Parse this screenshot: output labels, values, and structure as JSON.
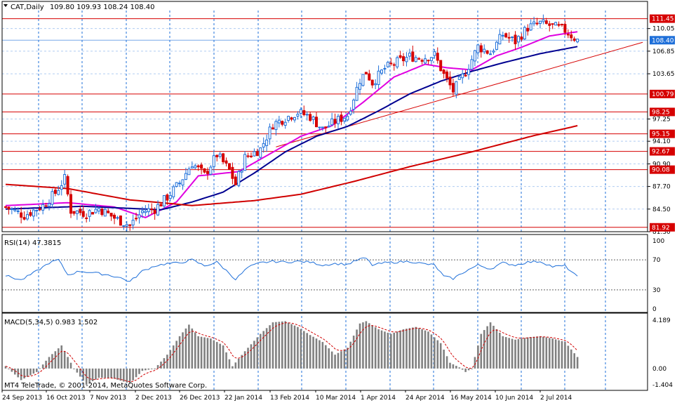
{
  "header": {
    "symbol_label": "CAT,Daily",
    "ohlc": "109.80 109.93 108.24 108.40"
  },
  "rsi_label": "RSI(14) 47.3815",
  "macd_label": "MACD(5,34,5) 0.983 1.502",
  "copyright": "MT4 TeleTrade, © 2001-2014, MetaQuotes Software Corp.",
  "colors": {
    "frame": "#000000",
    "grid": "#1e6fd9",
    "bull": "#1e6fd9",
    "bear": "#d60000",
    "level_line": "#d60000",
    "sma_fast": "#e000e0",
    "sma_mid": "#000090",
    "sma_slow": "#d00000",
    "rsi": "#1e6fd9",
    "macd_hist": "#808080",
    "macd_signal": "#d00000"
  },
  "chart_data": [
    {
      "type": "candlestick",
      "title": "CAT,Daily",
      "ylim": [
        81.3,
        112.6
      ],
      "y_ticks": [
        "110.05",
        "106.85",
        "103.65",
        "97.25",
        "94.10",
        "90.90",
        "87.70",
        "84.50",
        "81.30"
      ],
      "last_price": "108.40",
      "horizontal_levels": [
        "111.45",
        "100.79",
        "98.25",
        "95.15",
        "92.67",
        "90.08",
        "81.92"
      ],
      "x_ticks": [
        "24 Sep 2013",
        "16 Oct 2013",
        "7 Nov 2013",
        "2 Dec 2013",
        "26 Dec 2013",
        "22 Jan 2014",
        "13 Feb 2014",
        "10 Mar 2014",
        "1 Apr 2014",
        "24 Apr 2014",
        "16 May 2014",
        "10 Jun 2014",
        "2 Jul 2014"
      ],
      "close_anchors": [
        [
          0,
          84.8
        ],
        [
          6,
          83.6
        ],
        [
          12,
          85.0
        ],
        [
          16,
          86.8
        ],
        [
          19,
          88.8
        ],
        [
          21,
          84.3
        ],
        [
          26,
          83.9
        ],
        [
          30,
          84.6
        ],
        [
          36,
          83.0
        ],
        [
          40,
          82.2
        ],
        [
          44,
          84.2
        ],
        [
          48,
          84.5
        ],
        [
          52,
          86.2
        ],
        [
          56,
          88.2
        ],
        [
          60,
          91.0
        ],
        [
          64,
          89.3
        ],
        [
          68,
          92.2
        ],
        [
          72,
          90.0
        ],
        [
          74,
          88.0
        ],
        [
          77,
          91.8
        ],
        [
          82,
          93.0
        ],
        [
          86,
          96.5
        ],
        [
          90,
          97.4
        ],
        [
          94,
          98.2
        ],
        [
          98,
          97.6
        ],
        [
          102,
          95.8
        ],
        [
          106,
          96.9
        ],
        [
          110,
          97.8
        ],
        [
          114,
          102.8
        ],
        [
          116,
          103.9
        ],
        [
          118,
          102.4
        ],
        [
          122,
          104.4
        ],
        [
          126,
          105.3
        ],
        [
          130,
          106.1
        ],
        [
          134,
          105.9
        ],
        [
          138,
          106.3
        ],
        [
          141,
          103.5
        ],
        [
          144,
          101.2
        ],
        [
          148,
          103.9
        ],
        [
          152,
          107.5
        ],
        [
          156,
          106.6
        ],
        [
          160,
          109.2
        ],
        [
          164,
          108.2
        ],
        [
          168,
          110.2
        ],
        [
          172,
          110.8
        ],
        [
          176,
          110.4
        ],
        [
          180,
          109.8
        ],
        [
          184,
          108.4
        ]
      ],
      "moving_averages": [
        {
          "period_color": "sma_fast",
          "anchors": [
            [
              0,
              85.0
            ],
            [
              20,
              85.4
            ],
            [
              35,
              84.8
            ],
            [
              45,
              83.3
            ],
            [
              55,
              85.5
            ],
            [
              62,
              89.2
            ],
            [
              75,
              89.8
            ],
            [
              85,
              92.3
            ],
            [
              95,
              94.8
            ],
            [
              105,
              96.3
            ],
            [
              115,
              99.6
            ],
            [
              125,
              103.2
            ],
            [
              135,
              105.0
            ],
            [
              142,
              104.5
            ],
            [
              150,
              104.2
            ],
            [
              158,
              106.2
            ],
            [
              166,
              107.4
            ],
            [
              175,
              109.0
            ],
            [
              184,
              109.6
            ]
          ]
        },
        {
          "period_color": "sma_mid",
          "anchors": [
            [
              0,
              84.5
            ],
            [
              25,
              84.9
            ],
            [
              40,
              84.6
            ],
            [
              50,
              84.4
            ],
            [
              60,
              85.5
            ],
            [
              70,
              86.9
            ],
            [
              80,
              89.6
            ],
            [
              90,
              92.6
            ],
            [
              100,
              94.8
            ],
            [
              110,
              96.2
            ],
            [
              120,
              98.4
            ],
            [
              130,
              100.8
            ],
            [
              140,
              102.6
            ],
            [
              150,
              104.0
            ],
            [
              160,
              105.2
            ],
            [
              172,
              106.5
            ],
            [
              184,
              107.5
            ]
          ]
        },
        {
          "period_color": "sma_slow",
          "anchors": [
            [
              0,
              88.0
            ],
            [
              20,
              87.4
            ],
            [
              40,
              85.8
            ],
            [
              60,
              85.0
            ],
            [
              80,
              85.7
            ],
            [
              95,
              86.6
            ],
            [
              112,
              88.4
            ],
            [
              130,
              90.5
            ],
            [
              150,
              92.6
            ],
            [
              170,
              94.9
            ],
            [
              184,
              96.3
            ]
          ]
        }
      ],
      "trendline": {
        "from": [
          87,
          93.3
        ],
        "to": [
          205,
          108.1
        ]
      }
    },
    {
      "type": "line",
      "title": "RSI(14) 47.3815",
      "ylim": [
        0,
        100
      ],
      "y_ticks": [
        "100",
        "70",
        "30",
        "0"
      ],
      "levels": [
        70,
        30
      ],
      "anchors": [
        [
          0,
          49
        ],
        [
          5,
          43
        ],
        [
          10,
          55
        ],
        [
          14,
          66
        ],
        [
          17,
          70
        ],
        [
          20,
          50
        ],
        [
          24,
          55
        ],
        [
          28,
          53
        ],
        [
          33,
          50
        ],
        [
          37,
          46
        ],
        [
          40,
          41
        ],
        [
          44,
          55
        ],
        [
          48,
          62
        ],
        [
          52,
          65
        ],
        [
          56,
          66
        ],
        [
          60,
          70
        ],
        [
          64,
          62
        ],
        [
          68,
          67
        ],
        [
          72,
          52
        ],
        [
          74,
          44
        ],
        [
          78,
          60
        ],
        [
          82,
          66
        ],
        [
          86,
          68
        ],
        [
          90,
          67
        ],
        [
          94,
          68
        ],
        [
          98,
          67
        ],
        [
          102,
          63
        ],
        [
          106,
          65
        ],
        [
          110,
          64
        ],
        [
          114,
          71
        ],
        [
          116,
          72
        ],
        [
          118,
          63
        ],
        [
          122,
          66
        ],
        [
          126,
          67
        ],
        [
          130,
          68
        ],
        [
          134,
          65
        ],
        [
          138,
          63
        ],
        [
          141,
          48
        ],
        [
          144,
          45
        ],
        [
          148,
          55
        ],
        [
          152,
          63
        ],
        [
          156,
          58
        ],
        [
          160,
          66
        ],
        [
          164,
          63
        ],
        [
          168,
          67
        ],
        [
          172,
          68
        ],
        [
          176,
          61
        ],
        [
          180,
          62
        ],
        [
          184,
          47
        ]
      ]
    },
    {
      "type": "bar",
      "title": "MACD(5,34,5) 0.983 1.502",
      "ylim": [
        -1.404,
        4.189
      ],
      "y_ticks": [
        "4.189",
        "0.00",
        "-1.404"
      ],
      "anchors": [
        [
          0,
          0.2
        ],
        [
          5,
          -1.0
        ],
        [
          10,
          -0.3
        ],
        [
          14,
          1.0
        ],
        [
          18,
          2.0
        ],
        [
          22,
          0.0
        ],
        [
          26,
          -1.4
        ],
        [
          30,
          -0.8
        ],
        [
          34,
          -0.8
        ],
        [
          40,
          -1.3
        ],
        [
          44,
          -0.2
        ],
        [
          48,
          0.0
        ],
        [
          52,
          1.2
        ],
        [
          56,
          2.8
        ],
        [
          59,
          3.8
        ],
        [
          62,
          2.8
        ],
        [
          66,
          2.6
        ],
        [
          70,
          2.0
        ],
        [
          73,
          0.2
        ],
        [
          77,
          1.5
        ],
        [
          82,
          3.0
        ],
        [
          86,
          4.0
        ],
        [
          90,
          4.1
        ],
        [
          94,
          3.6
        ],
        [
          98,
          2.9
        ],
        [
          102,
          2.3
        ],
        [
          106,
          1.2
        ],
        [
          110,
          1.8
        ],
        [
          114,
          3.9
        ],
        [
          116,
          4.1
        ],
        [
          120,
          3.4
        ],
        [
          124,
          3.0
        ],
        [
          128,
          3.4
        ],
        [
          132,
          3.6
        ],
        [
          136,
          3.2
        ],
        [
          140,
          2.2
        ],
        [
          143,
          0.5
        ],
        [
          146,
          0.1
        ],
        [
          148,
          -0.3
        ],
        [
          150,
          0.0
        ],
        [
          153,
          3.0
        ],
        [
          156,
          4.0
        ],
        [
          160,
          2.8
        ],
        [
          164,
          2.5
        ],
        [
          168,
          2.7
        ],
        [
          172,
          2.8
        ],
        [
          176,
          2.6
        ],
        [
          180,
          2.3
        ],
        [
          184,
          1.0
        ]
      ]
    }
  ]
}
